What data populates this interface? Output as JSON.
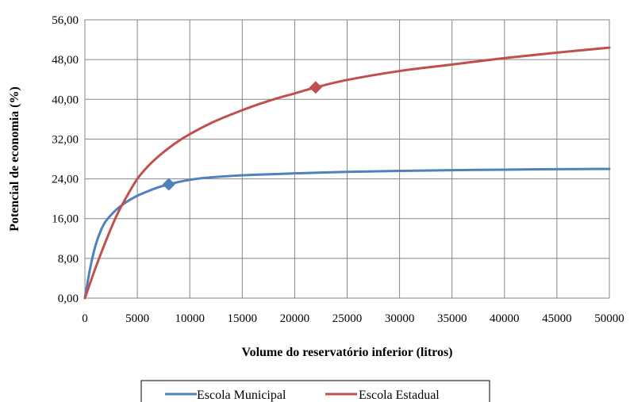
{
  "chart_data": {
    "type": "line",
    "title": "",
    "xlabel": "Volume do reservatório inferior (litros)",
    "ylabel": "Potencial de economia (%)",
    "xlim": [
      0,
      50000
    ],
    "ylim": [
      0,
      56
    ],
    "x_ticks": [
      0,
      5000,
      10000,
      15000,
      20000,
      25000,
      30000,
      35000,
      40000,
      45000,
      50000
    ],
    "x_tick_labels": [
      "0",
      "5000",
      "10000",
      "15000",
      "20000",
      "25000",
      "30000",
      "35000",
      "40000",
      "45000",
      "50000"
    ],
    "y_ticks": [
      0,
      8,
      16,
      24,
      32,
      40,
      48,
      56
    ],
    "y_tick_labels": [
      "0,00",
      "8,00",
      "16,00",
      "24,00",
      "32,00",
      "40,00",
      "48,00",
      "56,00"
    ],
    "grid": true,
    "legend_position": "bottom",
    "series": [
      {
        "name": "Escola Municipal",
        "color": "#4f81bd",
        "x": [
          0,
          500,
          1000,
          1500,
          2000,
          3000,
          4000,
          5000,
          6000,
          7000,
          8000,
          9000,
          10000,
          11000,
          12000,
          14000,
          16000,
          18000,
          20000,
          25000,
          30000,
          35000,
          40000,
          45000,
          50000
        ],
        "y": [
          0,
          6.0,
          10.5,
          13.5,
          15.5,
          17.8,
          19.4,
          20.6,
          21.5,
          22.3,
          22.9,
          23.4,
          23.8,
          24.1,
          24.3,
          24.6,
          24.8,
          24.95,
          25.1,
          25.4,
          25.6,
          25.75,
          25.85,
          25.95,
          26.0
        ],
        "marker": {
          "x": 8000,
          "y": 22.9
        }
      },
      {
        "name": "Escola Estadual",
        "color": "#c0504d",
        "x": [
          0,
          1000,
          2000,
          3000,
          4000,
          5000,
          6000,
          7000,
          8000,
          9000,
          10000,
          12000,
          14000,
          16000,
          18000,
          20000,
          22000,
          25000,
          30000,
          35000,
          40000,
          45000,
          50000
        ],
        "y": [
          0,
          6.0,
          11.5,
          16.5,
          20.5,
          24.0,
          26.5,
          28.5,
          30.2,
          31.7,
          33.0,
          35.2,
          37.0,
          38.6,
          40.0,
          41.2,
          42.4,
          43.9,
          45.7,
          47.0,
          48.3,
          49.4,
          50.4
        ],
        "marker": {
          "x": 22000,
          "y": 42.4
        }
      }
    ]
  }
}
